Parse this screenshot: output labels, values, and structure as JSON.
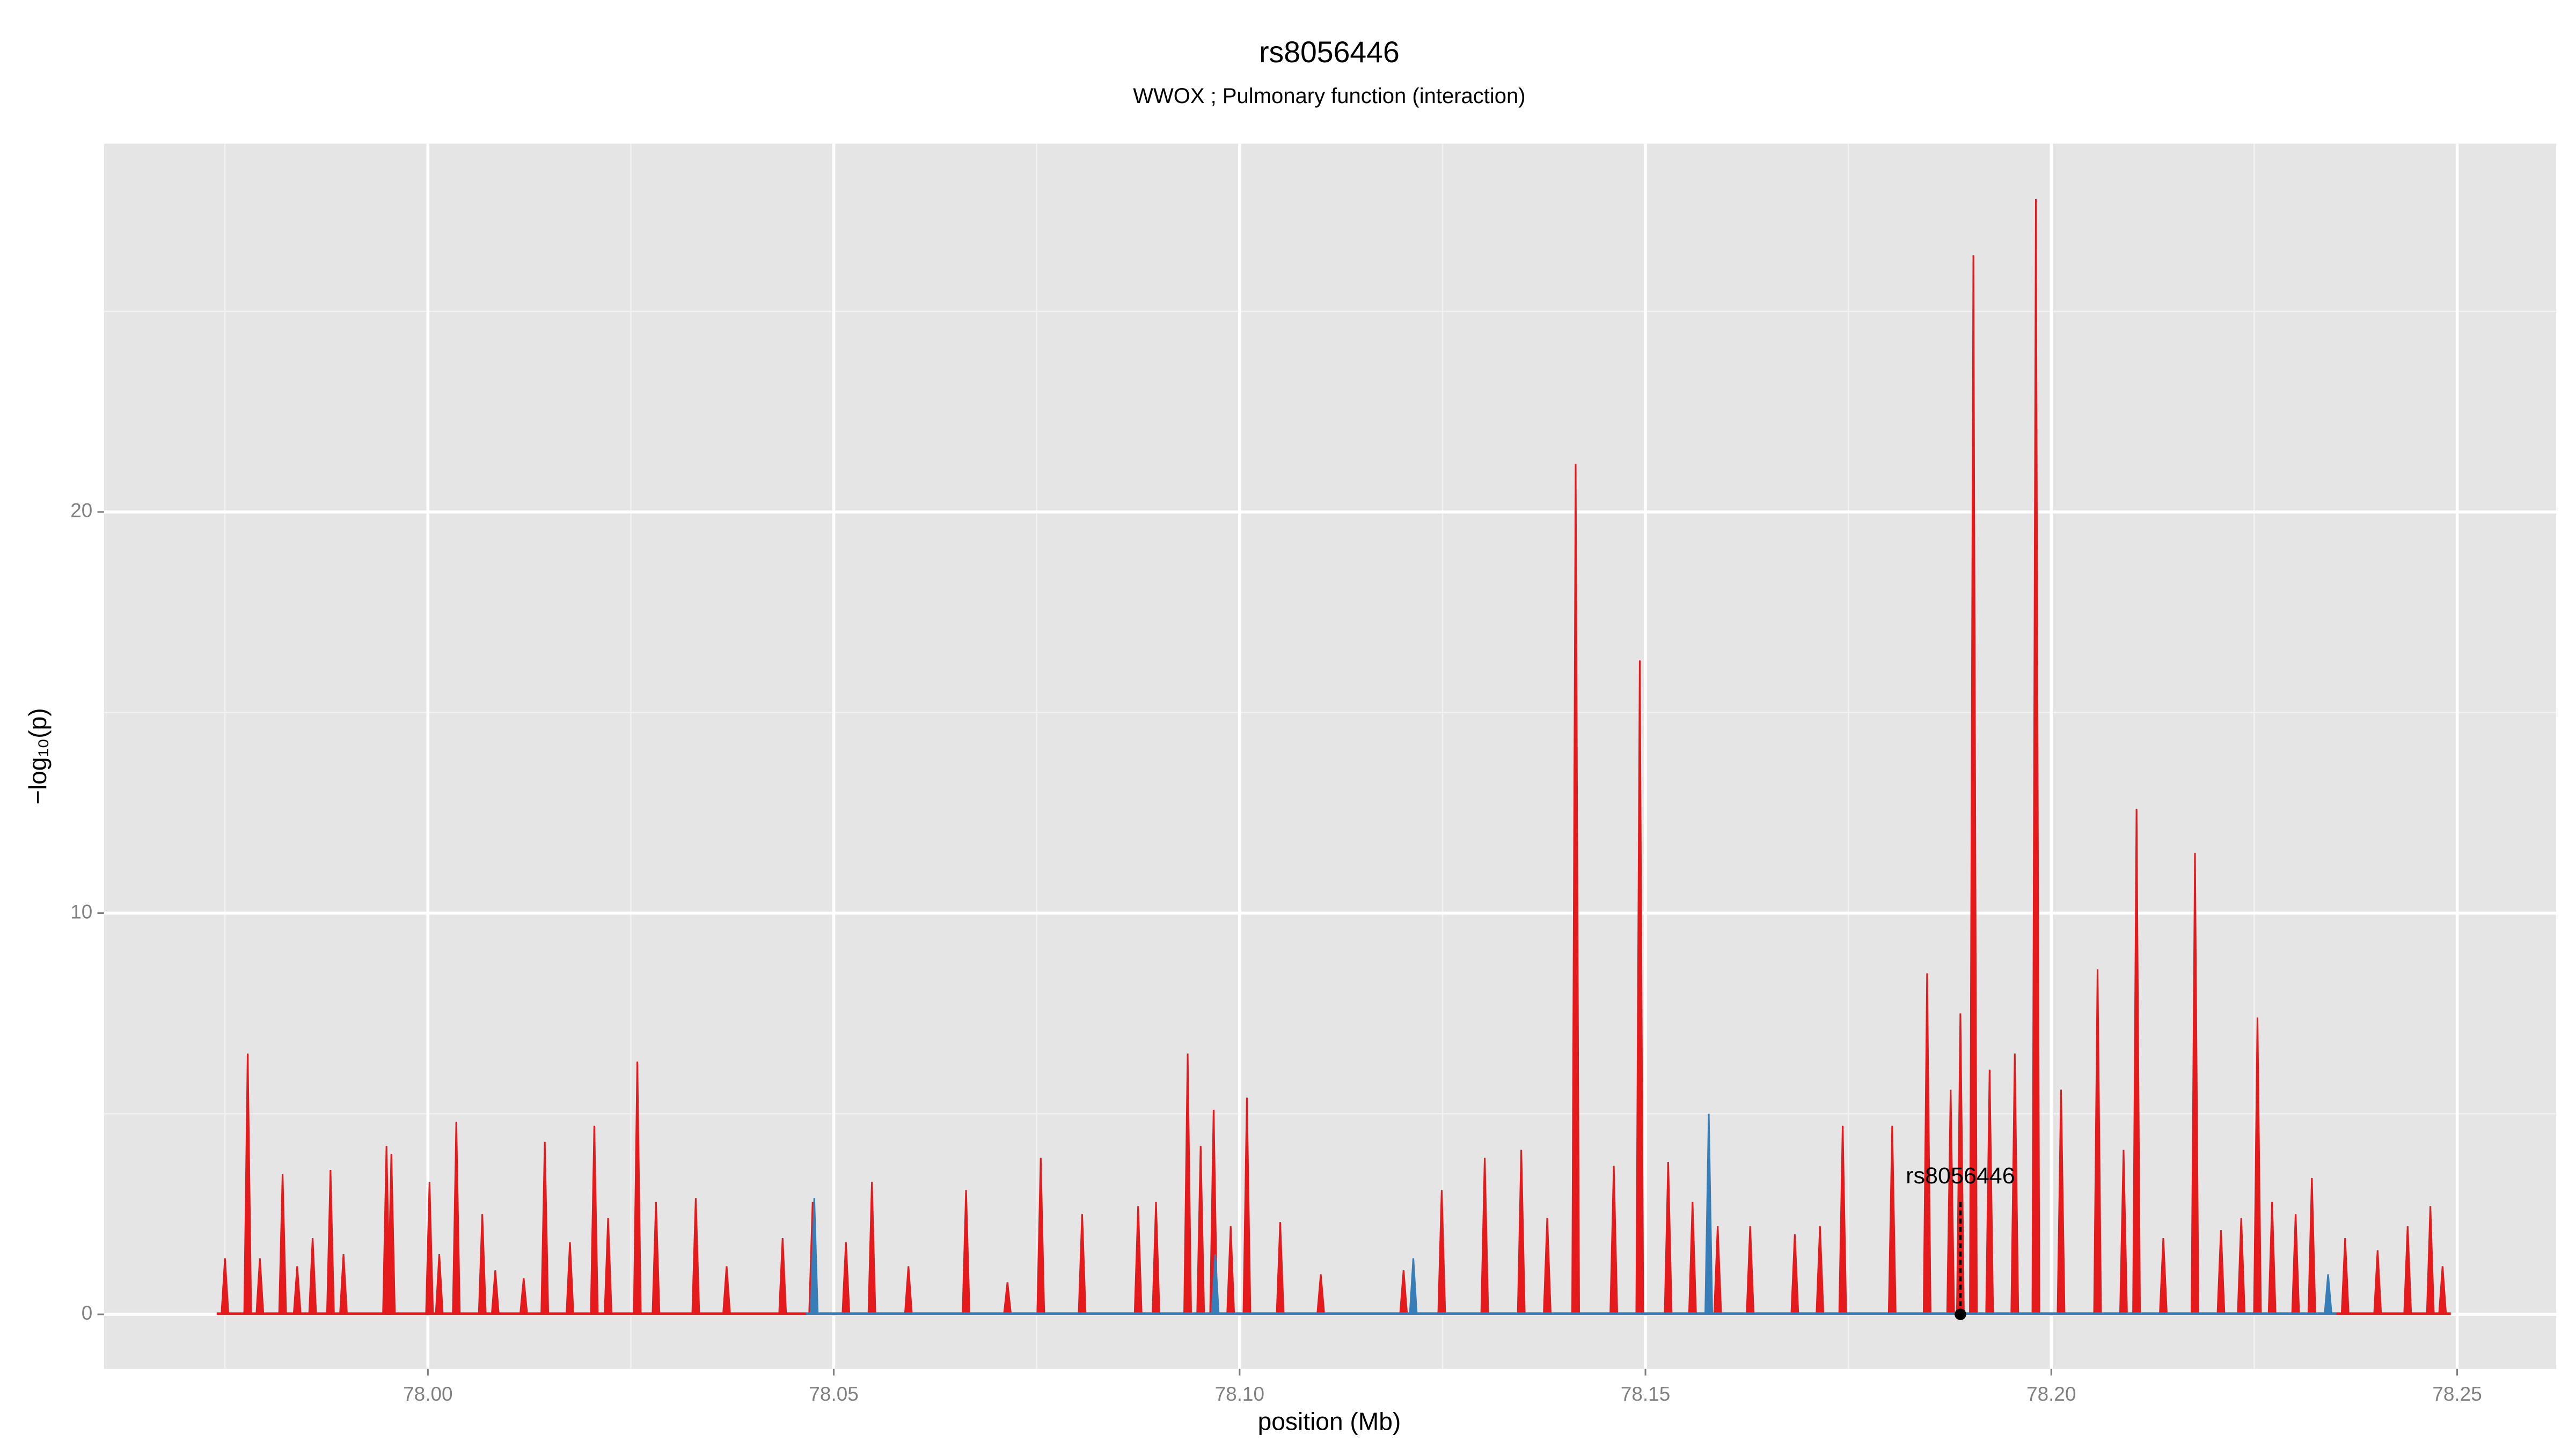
{
  "chart_data": {
    "type": "area",
    "title": "rs8056446",
    "subtitle": "WWOX ; Pulmonary function (interaction)",
    "x_label": "position (Mb)",
    "y_label": "−log₁₀(p)",
    "xlim": [
      77.9601,
      78.2622
    ],
    "ylim": [
      -1.36,
      29.18
    ],
    "xticks": [
      {
        "value": 78.0,
        "label": "78.00"
      },
      78.05,
      {
        "value": 78.1,
        "label": "78.10"
      },
      78.15,
      {
        "value": 78.2,
        "label": "78.20"
      },
      78.25
    ],
    "yticks": [
      0,
      10,
      20
    ],
    "x_minor_grid": [
      77.975,
      78.025,
      78.075,
      78.125,
      78.175,
      78.225
    ],
    "y_minor_grid": [
      5,
      15,
      25
    ],
    "grid": true,
    "series": [
      {
        "color": "#e41a1c",
        "x": [
          77.975,
          77.9778,
          77.9793,
          77.9821,
          77.9839,
          77.9858,
          77.988,
          77.9896,
          77.9949,
          77.9955,
          78.0002,
          78.0014,
          78.0035,
          78.0067,
          78.0083,
          78.0118,
          78.0144,
          78.0175,
          78.0205,
          78.0222,
          78.0258,
          78.0281,
          78.033,
          78.0368,
          78.0437,
          78.0474,
          78.0515,
          78.0547,
          78.0592,
          78.0663,
          78.0714,
          78.0755,
          78.0806,
          78.0875,
          78.0897,
          78.0936,
          78.0952,
          78.0968,
          78.0989,
          78.1009,
          78.105,
          78.11,
          78.1202,
          78.1249,
          78.1302,
          78.1347,
          78.1379,
          78.1414,
          78.1461,
          78.1493,
          78.1528,
          78.1558,
          78.1589,
          78.1629,
          78.1684,
          78.1715,
          78.1743,
          78.1804,
          78.1847,
          78.1876,
          78.1888,
          78.1904,
          78.1924,
          78.1955,
          78.1981,
          78.2012,
          78.2057,
          78.2089,
          78.2105,
          78.2138,
          78.2177,
          78.2209,
          78.2234,
          78.2254,
          78.2272,
          78.2301,
          78.2321,
          78.2362,
          78.2402,
          78.2439,
          78.2467,
          78.2482
        ],
        "values": [
          1.4,
          6.5,
          1.4,
          3.5,
          1.2,
          1.9,
          3.6,
          1.5,
          4.2,
          4.0,
          3.3,
          1.5,
          4.8,
          2.5,
          1.1,
          0.9,
          4.3,
          1.8,
          4.7,
          2.4,
          6.3,
          2.8,
          2.9,
          1.2,
          1.9,
          2.8,
          1.8,
          3.3,
          1.2,
          3.1,
          0.8,
          3.9,
          2.5,
          2.7,
          2.8,
          6.5,
          4.2,
          5.1,
          2.2,
          5.4,
          2.3,
          1.0,
          1.1,
          3.1,
          3.9,
          4.1,
          2.4,
          21.2,
          3.7,
          16.3,
          3.8,
          2.8,
          2.2,
          2.2,
          2.0,
          2.2,
          4.7,
          4.7,
          8.5,
          5.6,
          7.5,
          26.4,
          6.1,
          6.5,
          27.8,
          5.6,
          8.6,
          4.1,
          12.6,
          1.9,
          11.5,
          2.1,
          2.4,
          7.4,
          2.8,
          2.5,
          3.4,
          1.9,
          1.6,
          2.2,
          2.7,
          1.2
        ]
      },
      {
        "color": "#377eb8",
        "x": [
          78.0476,
          78.097,
          78.1214,
          78.1578,
          78.2341
        ],
        "values": [
          2.9,
          1.5,
          1.4,
          5.0,
          1.0
        ]
      }
    ],
    "annotation": {
      "label": "rs8056446",
      "x": 78.1888,
      "y": 0
    }
  }
}
